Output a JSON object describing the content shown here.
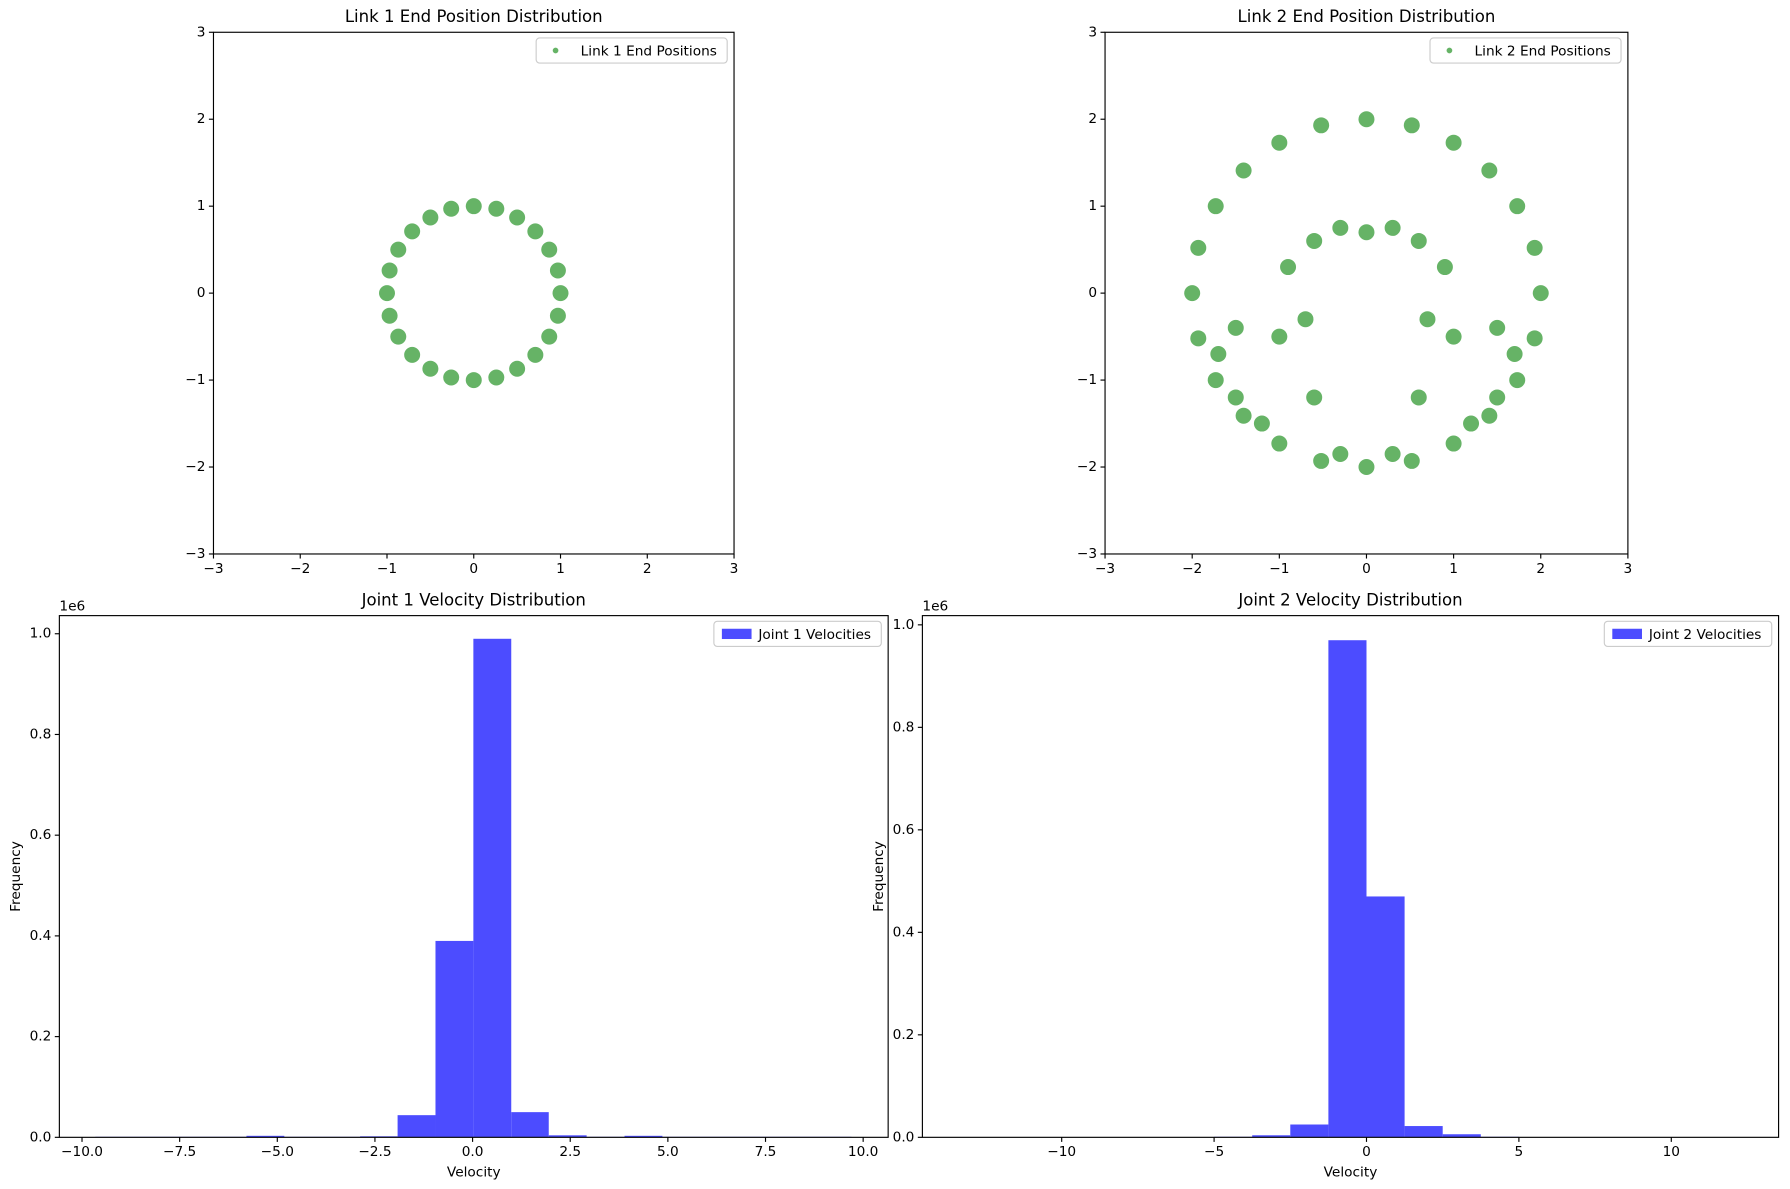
{
  "chart_data": [
    {
      "type": "scatter",
      "title": "Link 1 End Position Distribution",
      "series": [
        {
          "name": "Link 1 End Positions",
          "color": "#008000",
          "x": [
            1,
            0.97,
            0.87,
            0.71,
            0.5,
            0.26,
            0,
            -0.26,
            -0.5,
            -0.71,
            -0.87,
            -0.97,
            -1,
            -0.97,
            -0.87,
            -0.71,
            -0.5,
            -0.26,
            0,
            0.26,
            0.5,
            0.71,
            0.87,
            0.97
          ],
          "y": [
            0,
            0.26,
            0.5,
            0.71,
            0.87,
            0.97,
            1,
            0.97,
            0.87,
            0.71,
            0.5,
            0.26,
            0,
            -0.26,
            -0.5,
            -0.71,
            -0.87,
            -0.97,
            -1,
            -0.97,
            -0.87,
            -0.71,
            -0.5,
            -0.26
          ]
        }
      ],
      "legend": "upper right",
      "xlim": [
        -3,
        3
      ],
      "ylim": [
        -3,
        3
      ],
      "xticks": [
        {
          "value": -3,
          "label": "−3"
        },
        {
          "value": -2,
          "label": "−2"
        },
        {
          "value": -1,
          "label": "−1"
        },
        0,
        1,
        2,
        3
      ],
      "yticks": [
        {
          "value": -3,
          "label": "−3"
        },
        {
          "value": -2,
          "label": "−2"
        },
        {
          "value": -1,
          "label": "−1"
        },
        0,
        1,
        2,
        3
      ]
    },
    {
      "type": "scatter",
      "title": "Link 2 End Position Distribution",
      "series": [
        {
          "name": "Link 2 End Positions",
          "color": "#008000",
          "x": [
            2,
            1.93,
            1.73,
            1.41,
            1,
            0.52,
            0,
            -0.52,
            -1,
            -1.41,
            -1.73,
            -1.93,
            -2,
            -1.93,
            -1.73,
            -1.41,
            -1,
            -0.52,
            0,
            0.52,
            1,
            1.41,
            1.73,
            1.93,
            -0.3,
            0.3,
            0,
            -0.6,
            0.6,
            -0.9,
            0.9,
            -1.5,
            1.5,
            -1.7,
            1.7,
            -1.5,
            1.5,
            -0.7,
            0.7,
            -0.6,
            0.6,
            -0.3,
            0.3,
            -1,
            1,
            -1.2,
            1.2
          ],
          "y": [
            0,
            0.52,
            1,
            1.41,
            1.73,
            1.93,
            2,
            1.93,
            1.73,
            1.41,
            1,
            0.52,
            0,
            -0.52,
            -1,
            -1.41,
            -1.73,
            -1.93,
            -2,
            -1.93,
            -1.73,
            -1.41,
            -1,
            -0.52,
            0.75,
            0.75,
            0.7,
            0.6,
            0.6,
            0.3,
            0.3,
            -0.4,
            -0.4,
            -0.7,
            -0.7,
            -1.2,
            -1.2,
            -0.3,
            -0.3,
            -1.2,
            -1.2,
            -1.85,
            -1.85,
            -0.5,
            -0.5,
            -1.5,
            -1.5
          ]
        }
      ],
      "legend": "upper right",
      "xlim": [
        -3,
        3
      ],
      "ylim": [
        -3,
        3
      ],
      "xticks": [
        {
          "value": -3,
          "label": "−3"
        },
        {
          "value": -2,
          "label": "−2"
        },
        {
          "value": -1,
          "label": "−1"
        },
        0,
        1,
        2,
        3
      ],
      "yticks": [
        {
          "value": -3,
          "label": "−3"
        },
        {
          "value": -2,
          "label": "−2"
        },
        {
          "value": -1,
          "label": "−1"
        },
        0,
        1,
        2,
        3
      ]
    },
    {
      "type": "histogram",
      "title": "Joint 1 Velocity Distribution",
      "xlabel": "Velocity",
      "ylabel": "Frequency",
      "y_offset_label": "1e6",
      "bins": [
        -9.66,
        -8.69,
        -7.72,
        -6.76,
        -5.79,
        -4.82,
        -3.85,
        -2.88,
        -1.92,
        -0.95,
        0.02,
        0.99,
        1.95,
        2.92,
        3.89,
        4.86,
        5.83,
        6.79,
        7.76,
        8.73,
        9.7
      ],
      "series": [
        {
          "name": "Joint 1 Velocities",
          "color": "#4c4cff",
          "values": [
            0.001,
            0.001,
            0.001,
            0.001,
            0.003,
            0.001,
            0.001,
            0.002,
            0.044,
            0.39,
            0.99,
            0.05,
            0.004,
            0.001,
            0.003,
            0.001,
            0.001,
            0.001,
            0.001,
            0.001
          ]
        }
      ],
      "legend": "upper right",
      "xlim": [
        -10.58,
        10.64
      ],
      "ylim": [
        0,
        1.036
      ],
      "xticks": [
        {
          "value": -10,
          "label": "−10.0"
        },
        {
          "value": -7.5,
          "label": "−7.5"
        },
        {
          "value": -5,
          "label": "−5.0"
        },
        {
          "value": -2.5,
          "label": "−2.5"
        },
        {
          "value": 0,
          "label": "0.0"
        },
        2.5,
        {
          "value": 5,
          "label": "5.0"
        },
        7.5,
        {
          "value": 10,
          "label": "10.0"
        }
      ],
      "yticks": [
        {
          "value": 0,
          "label": "0.0"
        },
        0.2,
        0.4,
        0.6,
        0.8,
        {
          "value": 1,
          "label": "1.0"
        }
      ]
    },
    {
      "type": "histogram",
      "title": "Joint 2 Velocity Distribution",
      "xlabel": "Velocity",
      "ylabel": "Frequency",
      "y_offset_label": "1e6",
      "bins": [
        -12.5,
        -11.25,
        -10,
        -8.75,
        -7.5,
        -6.25,
        -5,
        -3.75,
        -2.5,
        -1.25,
        0,
        1.25,
        2.5,
        3.75,
        5,
        6.25,
        7.5,
        8.75,
        10,
        11.25,
        12.5
      ],
      "series": [
        {
          "name": "Joint 2 Velocities",
          "color": "#4c4cff",
          "values": [
            0.0003,
            0.0003,
            0.0003,
            0.0003,
            0.0003,
            0.0003,
            0.001,
            0.004,
            0.025,
            0.97,
            0.47,
            0.022,
            0.006,
            0.001,
            0.0003,
            0.0003,
            0.0003,
            0.0003,
            0.0003,
            0.0003
          ]
        }
      ],
      "legend": "upper right",
      "xlim": [
        -14.57,
        13.52
      ],
      "ylim": [
        0,
        1.018
      ],
      "xticks": [
        {
          "value": -10,
          "label": "−10"
        },
        {
          "value": -5,
          "label": "−5"
        },
        0,
        5,
        10
      ],
      "yticks": [
        {
          "value": 0,
          "label": "0.0"
        },
        0.2,
        0.4,
        0.6,
        0.8,
        {
          "value": 1,
          "label": "1.0"
        }
      ]
    }
  ]
}
